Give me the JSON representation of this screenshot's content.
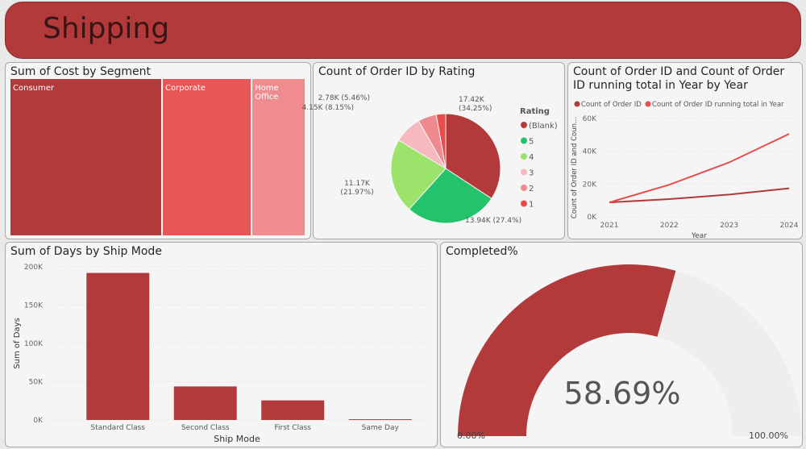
{
  "header": {
    "title": "Shipping"
  },
  "colors": {
    "accent": "#b33a3a",
    "line_running": "#e84c4c"
  },
  "treemap": {
    "title": "Sum of Cost by Segment",
    "items": [
      {
        "label": "Consumer",
        "share": 0.515,
        "color": "#b33a3a"
      },
      {
        "label": "Corporate",
        "share": 0.303,
        "color": "#e85757"
      },
      {
        "label": "Home Office",
        "share": 0.182,
        "color": "#f08c90"
      }
    ]
  },
  "chart_data": [
    {
      "type": "pie",
      "title": "Count of Order ID by Rating",
      "legend_title": "Rating",
      "legend_position": "right",
      "slices": [
        {
          "name": "(Blank)",
          "value": 17420,
          "label": "17.42K\n(34.25%)",
          "color": "#b33a3a"
        },
        {
          "name": "5",
          "value": 13940,
          "label": "13.94K (27.4%)",
          "color": "#22c36b"
        },
        {
          "name": "4",
          "value": 11170,
          "label": "11.17K\n(21.97%)",
          "color": "#9be36b"
        },
        {
          "name": "3",
          "value": 4150,
          "label": "4.15K (8.15%)",
          "color": "#f7b9bd"
        },
        {
          "name": "2",
          "value": 2780,
          "label": "2.78K (5.46%)",
          "color": "#ef8a8f"
        },
        {
          "name": "1",
          "value": 1410,
          "label": "",
          "color": "#e84c4c"
        }
      ]
    },
    {
      "type": "line",
      "title": "Count of Order ID and Count of Order ID running total in Year by Year",
      "xlabel": "Year",
      "ylabel": "Count of Order ID and Coun...",
      "x": [
        "2021",
        "2022",
        "2023",
        "2024"
      ],
      "ylim": [
        0,
        60000
      ],
      "yticks": [
        "0K",
        "20K",
        "40K",
        "60K"
      ],
      "grid": true,
      "legend_position": "top",
      "series": [
        {
          "name": "Count of Order ID",
          "values": [
            8800,
            10800,
            13600,
            17400
          ],
          "color": "#b33a3a"
        },
        {
          "name": "Count of Order ID running total in Year",
          "values": [
            8800,
            19600,
            33200,
            50600
          ],
          "color": "#e84c4c"
        }
      ]
    },
    {
      "type": "bar",
      "title": "Sum of Days by Ship Mode",
      "xlabel": "Ship Mode",
      "ylabel": "Sum of Days",
      "categories": [
        "Standard Class",
        "Second Class",
        "First Class",
        "Same Day"
      ],
      "values": [
        192000,
        43800,
        25600,
        1000
      ],
      "ylim": [
        0,
        200000
      ],
      "yticks": [
        "0K",
        "50K",
        "100K",
        "150K",
        "200K"
      ],
      "grid": true,
      "color": "#b33a3a"
    }
  ],
  "gauge": {
    "title": "Completed%",
    "value": 58.69,
    "value_label": "58.69%",
    "min_label": "0.00%",
    "max_label": "100.00%",
    "color": "#b33a3a",
    "track": "#efeeec"
  }
}
